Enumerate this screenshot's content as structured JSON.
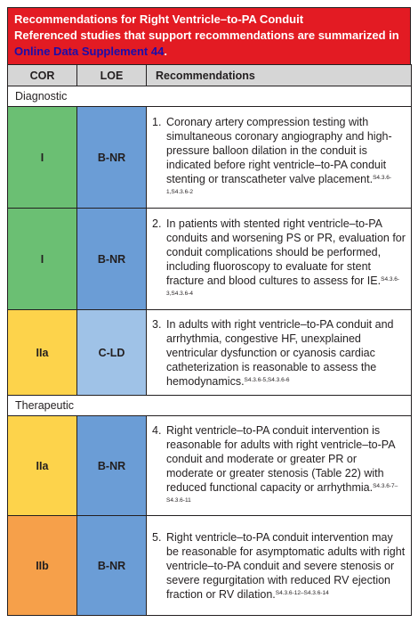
{
  "header": {
    "title": "Recommendations for Right Ventricle–to-PA Conduit",
    "subtitle": "Referenced studies that support recommendations are summarized in",
    "link": "Online Data Supplement 44",
    "period": "."
  },
  "columns": {
    "cor": "COR",
    "loe": "LOE",
    "rec": "Recommendations"
  },
  "sections": {
    "diagnostic": "Diagnostic",
    "therapeutic": "Therapeutic"
  },
  "rows": [
    {
      "cor": "I",
      "loe": "B-NR",
      "num": "1.",
      "text": "Coronary artery compression testing with simultaneous coronary angiography and high-pressure balloon dilation in the conduit is indicated before right ventricle–to-PA conduit stenting or transcatheter valve placement.",
      "ref": "S4.3.6-1,S4.3.6-2"
    },
    {
      "cor": "I",
      "loe": "B-NR",
      "num": "2.",
      "text": "In patients with stented right ventricle–to-PA conduits and worsening PS or PR, evaluation for conduit complications should be performed, including fluoroscopy to evaluate for stent fracture and blood cultures to assess for IE.",
      "ref": "S4.3.6-3,S4.3.6-4"
    },
    {
      "cor": "IIa",
      "loe": "C-LD",
      "num": "3.",
      "text": "In adults with right ventricle–to-PA conduit and arrhythmia, congestive HF, unexplained ventricular dysfunction or cyanosis cardiac catheterization is reasonable to assess the hemodynamics.",
      "ref": "S4.3.6-5,S4.3.6-6"
    },
    {
      "cor": "IIa",
      "loe": "B-NR",
      "num": "4.",
      "text": "Right ventricle–to-PA conduit intervention is reasonable for adults with right ventricle–to-PA conduit and moderate or greater PR or moderate or greater stenosis (Table 22) with reduced functional capacity or arrhythmia.",
      "ref": "S4.3.6-7–S4.3.6-11"
    },
    {
      "cor": "IIb",
      "loe": "B-NR",
      "num": "5.",
      "text": "Right ventricle–to-PA conduit intervention may be reasonable for asymptomatic adults with right ventricle–to-PA conduit and severe stenosis or severe regurgitation with reduced RV ejection fraction or RV dilation.",
      "ref": "S4.3.6-12–S4.3.6-14"
    }
  ],
  "colors": {
    "header": "#e31b23",
    "link": "#1a0dab",
    "cor_I": "#6bbf73",
    "cor_IIa": "#fdd34b",
    "cor_IIb": "#f6a04a",
    "loe_BNR": "#6b9dd6",
    "loe_CLD": "#9fc2e7"
  }
}
